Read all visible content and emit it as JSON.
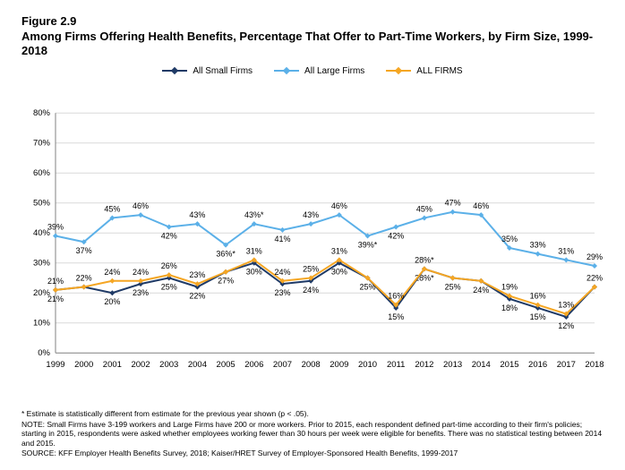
{
  "figure_number": "Figure 2.9",
  "title": "Among Firms Offering Health Benefits, Percentage That Offer to Part-Time Workers, by Firm Size, 1999-2018",
  "chart": {
    "type": "line",
    "years": [
      1999,
      2000,
      2001,
      2002,
      2003,
      2004,
      2005,
      2006,
      2007,
      2008,
      2009,
      2010,
      2011,
      2012,
      2013,
      2014,
      2015,
      2016,
      2017,
      2018
    ],
    "ylim": [
      0,
      80
    ],
    "ytick_step": 10,
    "y_suffix": "%",
    "grid_color": "#d9d9d9",
    "axis_color": "#808080",
    "background_color": "#ffffff",
    "line_width": 2,
    "marker_size": 6,
    "label_fontsize": 9,
    "axis_fontsize": 9.5,
    "series": [
      {
        "name": "All Small Firms",
        "color": "#1f3a66",
        "values": [
          21,
          22,
          20,
          23,
          25,
          22,
          27,
          30,
          23,
          24,
          30,
          25,
          15,
          28,
          25,
          24,
          18,
          15,
          12,
          22
        ],
        "label_pos": [
          "below",
          "skip",
          "below",
          "below",
          "below",
          "below",
          "below",
          "below",
          "below",
          "below",
          "below",
          "below",
          "below",
          "below",
          "below",
          "below",
          "below",
          "below",
          "below",
          "skip"
        ],
        "star": [
          false,
          false,
          false,
          false,
          false,
          false,
          false,
          false,
          false,
          false,
          false,
          false,
          false,
          true,
          false,
          false,
          false,
          false,
          false,
          false
        ]
      },
      {
        "name": "All Large Firms",
        "color": "#5bb0e8",
        "values": [
          39,
          37,
          45,
          46,
          42,
          43,
          36,
          43,
          41,
          43,
          46,
          39,
          42,
          45,
          47,
          46,
          35,
          33,
          31,
          29
        ],
        "label_pos": [
          "above",
          "below",
          "above",
          "above",
          "below",
          "above",
          "below",
          "above",
          "below",
          "above",
          "above",
          "below",
          "below",
          "above",
          "above",
          "above",
          "above",
          "above",
          "above",
          "above"
        ],
        "star": [
          false,
          false,
          false,
          false,
          false,
          false,
          true,
          true,
          false,
          false,
          false,
          true,
          false,
          false,
          false,
          false,
          false,
          false,
          false,
          false
        ]
      },
      {
        "name": "ALL FIRMS",
        "color": "#f5a623",
        "values": [
          21,
          22,
          24,
          24,
          26,
          23,
          27,
          31,
          24,
          25,
          31,
          25,
          16,
          28,
          25,
          24,
          19,
          16,
          13,
          22
        ],
        "label_pos": [
          "above",
          "above",
          "above",
          "above",
          "above",
          "above",
          "skip",
          "above",
          "above",
          "above",
          "above",
          "skip",
          "above",
          "above",
          "skip",
          "skip",
          "above",
          "above",
          "above",
          "above"
        ],
        "star": [
          false,
          false,
          false,
          false,
          false,
          false,
          false,
          false,
          false,
          false,
          false,
          false,
          false,
          true,
          false,
          false,
          false,
          false,
          false,
          false
        ]
      }
    ]
  },
  "legend_labels": [
    "All Small Firms",
    "All Large Firms",
    "ALL FIRMS"
  ],
  "footnotes": [
    "* Estimate is statistically different from estimate for the previous year shown (p < .05).",
    "NOTE: Small Firms have 3-199 workers and Large Firms have 200 or more workers. Prior to 2015, each respondent defined part-time according to their firm's policies; starting in 2015, respondents were asked whether employees working fewer than 30 hours per week were eligible for benefits. There was no statistical testing between 2014 and 2015.",
    "SOURCE: KFF Employer Health Benefits Survey, 2018; Kaiser/HRET Survey of Employer-Sponsored Health Benefits, 1999-2017"
  ]
}
